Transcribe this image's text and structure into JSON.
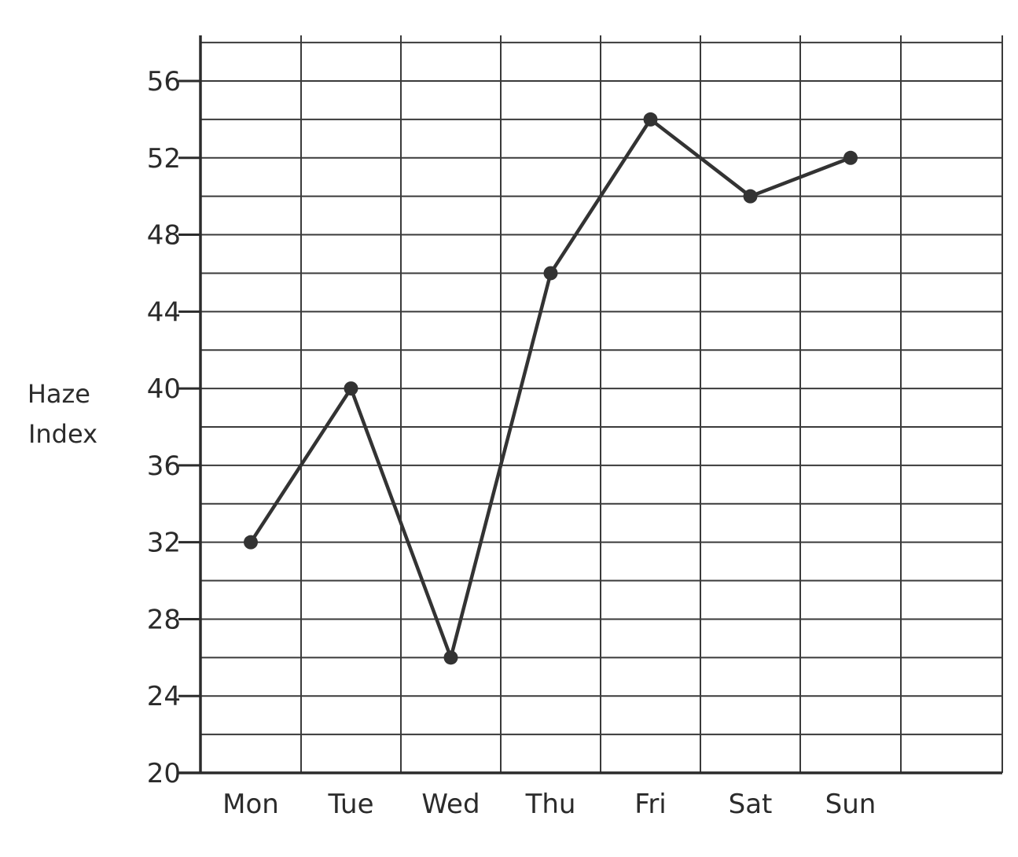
{
  "chart_data": {
    "type": "line",
    "categories": [
      "Mon",
      "Tue",
      "Wed",
      "Thu",
      "Fri",
      "Sat",
      "Sun"
    ],
    "series": [
      {
        "values": [
          32,
          40,
          26,
          46,
          54,
          50,
          52
        ]
      }
    ],
    "ylabel_lines": [
      "Haze",
      "Index"
    ],
    "ylim": [
      20,
      56
    ],
    "yticks": [
      "20",
      "24",
      "28",
      "32",
      "36",
      "40",
      "44",
      "48",
      "52",
      "56"
    ],
    "grid": true,
    "colors": {
      "line": "#333333",
      "grid": "#3a3a3a"
    }
  }
}
